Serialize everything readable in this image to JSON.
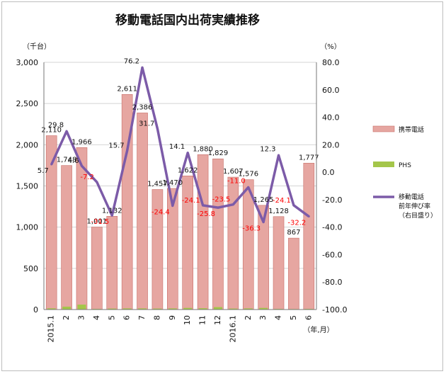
{
  "chart_data": {
    "type": "bar",
    "title": "移動電話国内出荷実績推移",
    "left_unit": "（千台）",
    "right_unit": "（%）",
    "x_unit": "（年,月）",
    "categories": [
      "2015.1",
      "2",
      "3",
      "4",
      "5",
      "6",
      "7",
      "8",
      "9",
      "10",
      "11",
      "12",
      "2016.1",
      "2",
      "3",
      "4",
      "5",
      "6"
    ],
    "left_ylim": [
      0,
      3000
    ],
    "left_ticks": [
      "0",
      "500",
      "1,000",
      "1,500",
      "2,000",
      "2,500",
      "3,000"
    ],
    "right_ylim": [
      -100,
      80
    ],
    "right_ticks": [
      "-100.0",
      "-80.0",
      "-60.0",
      "-40.0",
      "-20.0",
      "0.0",
      "20.0",
      "40.0",
      "60.0",
      "80.0"
    ],
    "grid": true,
    "legend_position": "right",
    "series": [
      {
        "name": "携帯電話",
        "kind": "bar",
        "axis": "left",
        "color": "#e6a6a1",
        "values": [
          2110,
          1748,
          1966,
          1001,
          1132,
          2611,
          2386,
          1457,
          1470,
          1622,
          1880,
          1829,
          1607,
          1576,
          1265,
          1128,
          867,
          1777
        ],
        "labels": [
          "2,110",
          "1,748",
          "1,966",
          "1,001",
          "1,132",
          "2,611",
          "2,386",
          "1,457",
          "1,470",
          "1,622",
          "1,880",
          "1,829",
          "1,607",
          "1,576",
          "1,265",
          "1,128",
          "867",
          "1,777"
        ]
      },
      {
        "name": "PHS",
        "kind": "bar",
        "axis": "left",
        "color": "#a4c64a",
        "values": [
          15,
          35,
          60,
          8,
          12,
          14,
          14,
          12,
          14,
          20,
          16,
          30,
          12,
          14,
          20,
          8,
          6,
          8
        ]
      },
      {
        "name": "移動電話\n前年伸び率\n（右目盛り）",
        "kind": "line",
        "axis": "right",
        "color": "#7c5ba8",
        "values": [
          5.7,
          29.8,
          4.6,
          -7.2,
          -31.5,
          15.7,
          76.2,
          31.7,
          -24.4,
          14.1,
          -24.1,
          -25.8,
          -23.5,
          -11.0,
          -36.3,
          12.3,
          -24.1,
          -32.2
        ],
        "labels": [
          "5.7",
          "29.8",
          "4.6",
          "-7.2",
          "-31.5",
          "15.7",
          "76.2",
          "31.7",
          "-24.4",
          "14.1",
          "-24.1",
          "-25.8",
          "-23.5",
          "-11.0",
          "-36.3",
          "12.3",
          "-24.1",
          "-32.2"
        ]
      }
    ]
  },
  "colors": {
    "bar": "#e6a6a1",
    "bar_edge": "#c86f69",
    "phs": "#a4c64a",
    "line": "#7c5ba8",
    "negative_label": "#ff0000",
    "positive_label": "#111111",
    "grid": "#d4d4d4"
  }
}
